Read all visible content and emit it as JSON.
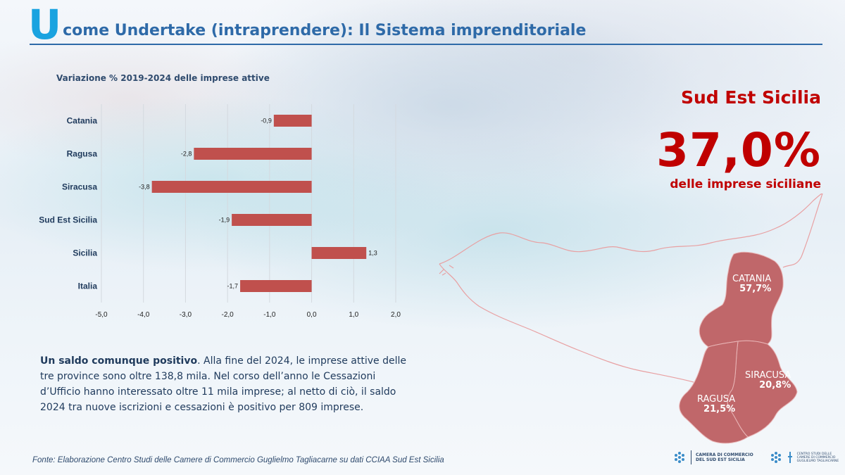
{
  "header": {
    "letter": "U",
    "title": "come Undertake (intraprendere): Il Sistema imprenditoriale"
  },
  "chart_data": {
    "type": "bar",
    "orientation": "horizontal",
    "title": "Variazione % 2019-2024 delle imprese attive",
    "categories": [
      "Catania",
      "Ragusa",
      "Siracusa",
      "Sud Est Sicilia",
      "Sicilia",
      "Italia"
    ],
    "values": [
      -0.9,
      -2.8,
      -3.8,
      -1.9,
      1.3,
      -1.7
    ],
    "value_labels": [
      "-0,9",
      "-2,8",
      "-3,8",
      "-1,9",
      "1,3",
      "-1,7"
    ],
    "xlim": [
      -5.0,
      2.0
    ],
    "xticks": [
      -5.0,
      -4.0,
      -3.0,
      -2.0,
      -1.0,
      0.0,
      1.0,
      2.0
    ],
    "xtick_labels": [
      "-5,0",
      "-4,0",
      "-3,0",
      "-2,0",
      "-1,0",
      "0,0",
      "1,0",
      "2,0"
    ],
    "grid": "vertical",
    "bar_color": "#c0504d"
  },
  "kpi": {
    "region": "Sud Est Sicilia",
    "value": "37,0%",
    "caption": "delle imprese siciliane",
    "color": "#c00000"
  },
  "body": {
    "lead": "Un saldo comunque positivo",
    "text": ". Alla fine del 2024, le imprese attive delle tre province sono oltre 138,8 mila. Nel corso dell’anno le Cessazioni d’Ufficio hanno interessato oltre 11 mila imprese; al netto di ciò, il saldo 2024 tra nuove iscrizioni e cessazioni è positivo per 809 imprese."
  },
  "map": {
    "fill_color": "#c0676a",
    "provinces": [
      {
        "name": "CATANIA",
        "share": "57,7%"
      },
      {
        "name": "SIRACUSA",
        "share": "20,8%"
      },
      {
        "name": "RAGUSA",
        "share": "21,5%"
      }
    ]
  },
  "source": "Fonte: Elaborazione Centro Studi delle Camere di Commercio Guglielmo Tagliacarne su dati CCIAA Sud Est Sicilia",
  "logos": {
    "chamber_line1": "CAMERA DI COMMERCIO",
    "chamber_line2": "DEL SUD EST SICILIA",
    "centro_line1": "CENTRO STUDI DELLE",
    "centro_line2": "CAMERE DI COMMERCIO",
    "centro_line3": "GUGLIELMO TAGLIACARNE"
  }
}
